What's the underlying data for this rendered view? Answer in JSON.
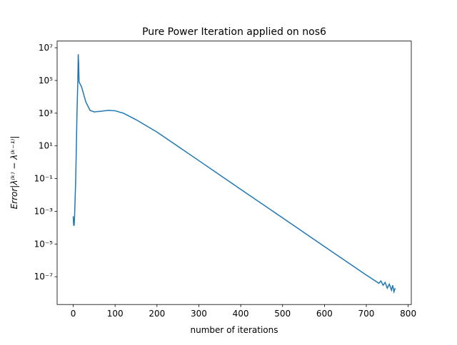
{
  "chart_data": {
    "type": "line",
    "title": "Pure Power Iteration applied on nos6",
    "xlabel": "number of iterations",
    "ylabel": "Error|λ⁽ᵏ⁾ − λ⁽ᵏ⁻¹⁾|",
    "yscale": "log",
    "xlim": [
      -38.45,
      807.45
    ],
    "ylim": [
      2e-09,
      25700000.0
    ],
    "xticks": [
      0,
      100,
      200,
      300,
      400,
      500,
      600,
      700,
      800
    ],
    "yticks": [
      {
        "value": 10000000.0,
        "label": "10⁷"
      },
      {
        "value": 100000.0,
        "label": "10⁵"
      },
      {
        "value": 1000.0,
        "label": "10³"
      },
      {
        "value": 10,
        "label": "10¹"
      },
      {
        "value": 0.1,
        "label": "10⁻¹"
      },
      {
        "value": 0.001,
        "label": "10⁻³"
      },
      {
        "value": 1e-05,
        "label": "10⁻⁵"
      },
      {
        "value": 1e-07,
        "label": "10⁻⁷"
      }
    ],
    "series": [
      {
        "color": "#1f77b4",
        "x": [
          0,
          1,
          2,
          3,
          6,
          9,
          11,
          12,
          13,
          14,
          20,
          30,
          40,
          50,
          65,
          85,
          100,
          120,
          150,
          200,
          300,
          400,
          500,
          600,
          700,
          730,
          735,
          740,
          745,
          750,
          755,
          760,
          763,
          766,
          769
        ],
        "values": [
          0.0005,
          0.00015,
          0.00013,
          0.0003,
          0.1,
          1000.0,
          100000.0,
          4000000.0,
          1000000.0,
          80000.0,
          40000.0,
          5000.0,
          1500.0,
          1200.0,
          1300.0,
          1500.0,
          1400.0,
          1000.0,
          400.0,
          70.0,
          1.26,
          0.022,
          0.0004,
          7e-06,
          1.26e-07,
          4e-08,
          5.5e-08,
          3e-08,
          4.5e-08,
          2e-08,
          3.5e-08,
          1.5e-08,
          3e-08,
          1.2e-08,
          2e-08
        ]
      }
    ]
  }
}
